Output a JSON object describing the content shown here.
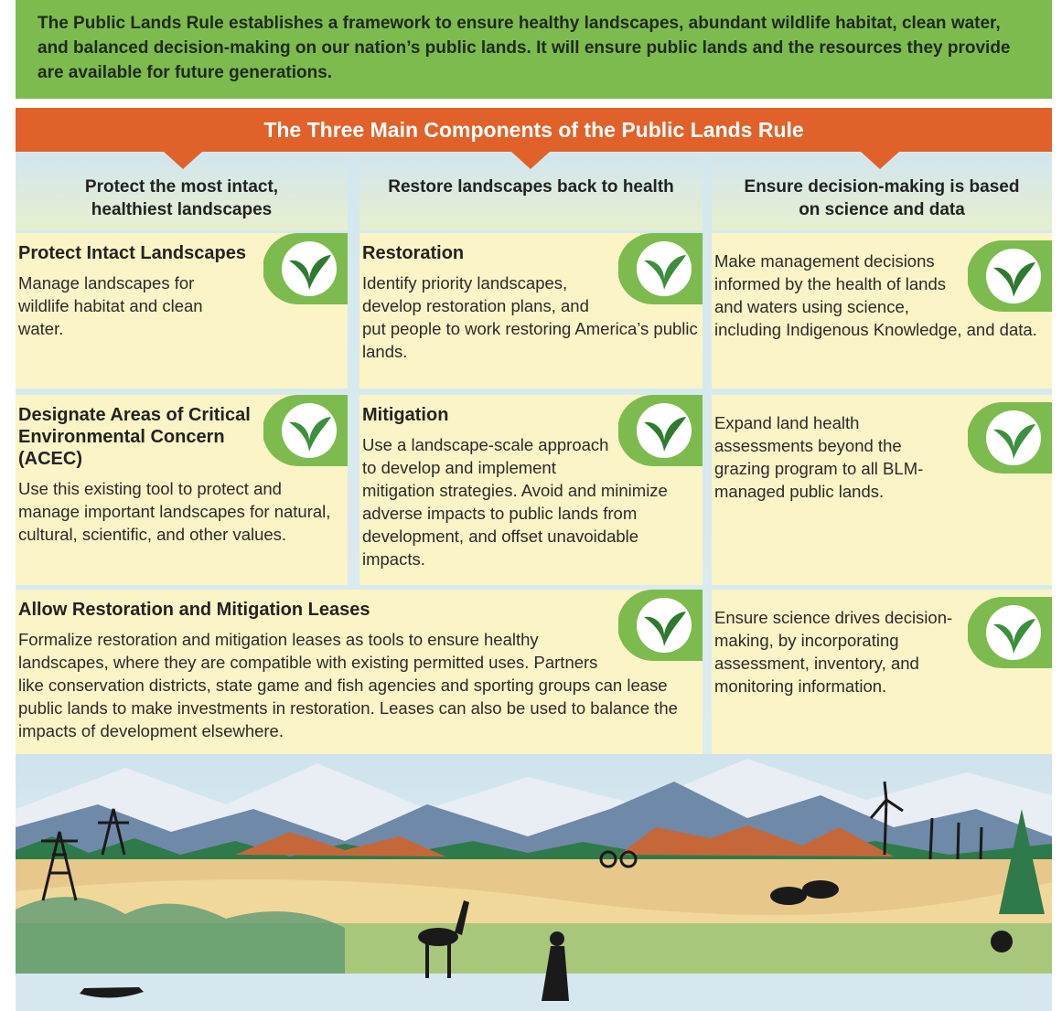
{
  "intro": "The Public Lands Rule establishes a framework to ensure healthy landscapes, abundant wildlife habitat, clean water, and balanced decision-making on our nation’s public lands. It will ensure public lands and the resources they provide are available for future generations.",
  "banner": "The Three Main Components of the Public Lands Rule",
  "columns": [
    {
      "header": "Protect the most intact, healthiest landscapes"
    },
    {
      "header": "Restore landscapes back to health"
    },
    {
      "header": "Ensure decision-making is based on science and data"
    }
  ],
  "cells": [
    {
      "title": "Protect Intact Landscapes",
      "body": "Manage landscapes for wildlife habitat and clean water."
    },
    {
      "title": "Restoration",
      "body": "Identify priority landscapes, develop restoration plans, and put people to work restoring America’s public lands."
    },
    {
      "body": "Make management decisions informed by the health of lands and waters using science, including Indigenous Knowledge, and data."
    },
    {
      "title": "Designate Areas of Critical Environmental Concern (ACEC)",
      "body": "Use this existing tool to protect and manage important landscapes for natural, cultural, scientific, and other values."
    },
    {
      "title": "Mitigation",
      "body": "Use a landscape-scale approach to develop and implement mitigation strategies. Avoid and minimize adverse impacts to public lands from development, and offset unavoidable impacts."
    },
    {
      "body": "Expand land health assessments beyond the grazing program to all BLM-managed public lands."
    },
    {
      "title": "Allow Restoration and Mitigation Leases",
      "body": "Formalize restoration and mitigation leases as tools to ensure healthy landscapes, where they are compatible with existing permitted uses. Partners like conservation districts, state game and fish agencies and sporting groups can lease public lands to make investments in restoration. Leases can also be used to balance the impacts of development elsewhere."
    },
    {
      "body": "Ensure science drives decision-making, by incorporating assessment, inventory, and monitoring information."
    }
  ]
}
